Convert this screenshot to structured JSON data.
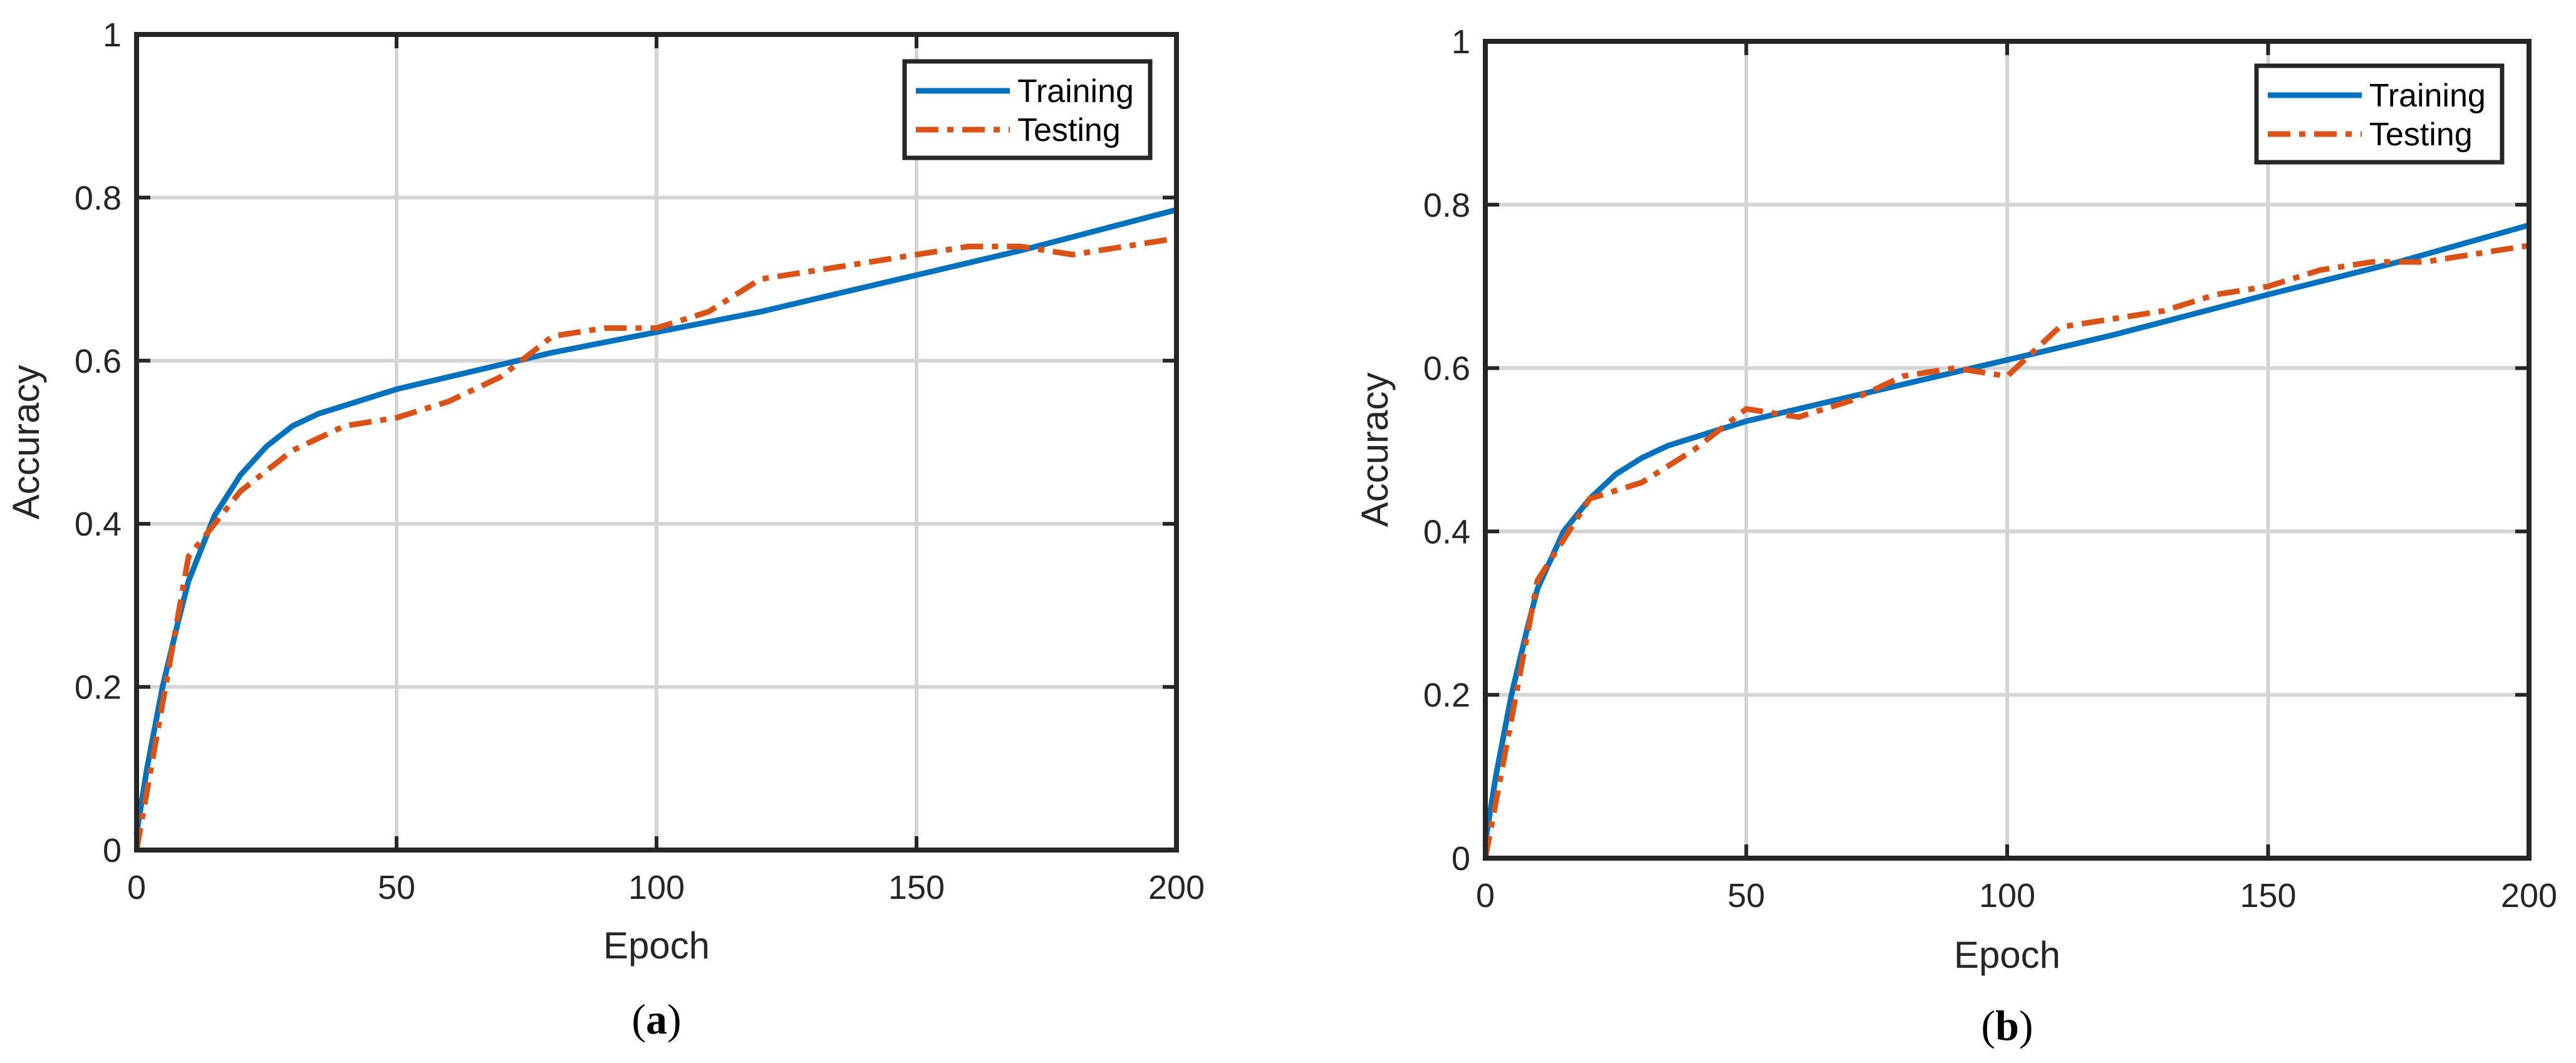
{
  "chart_data": [
    {
      "type": "line",
      "panel_label": "a",
      "title": "",
      "xlabel": "Epoch",
      "ylabel": "Accuracy",
      "xlim": [
        0,
        200
      ],
      "ylim": [
        0,
        1
      ],
      "xticks": [
        0,
        50,
        100,
        150,
        200
      ],
      "yticks": [
        0,
        0.2,
        0.4,
        0.6,
        0.8,
        1
      ],
      "xtick_labels": [
        "0",
        "50",
        "100",
        "150",
        "200"
      ],
      "ytick_labels": [
        "0",
        "0.2",
        "0.4",
        "0.6",
        "0.8",
        "1"
      ],
      "grid": true,
      "legend_position": "top-right",
      "series": [
        {
          "name": "Training",
          "color": "#0072BD",
          "line_style": "solid",
          "x": [
            0,
            2,
            5,
            8,
            10,
            15,
            20,
            25,
            30,
            35,
            40,
            50,
            60,
            70,
            80,
            100,
            120,
            150,
            170,
            200
          ],
          "y": [
            0.02,
            0.1,
            0.2,
            0.28,
            0.33,
            0.41,
            0.46,
            0.495,
            0.52,
            0.535,
            0.545,
            0.565,
            0.58,
            0.595,
            0.61,
            0.635,
            0.66,
            0.705,
            0.735,
            0.785
          ]
        },
        {
          "name": "Testing",
          "color": "#D95319",
          "line_style": "dashdot",
          "x": [
            0,
            10,
            20,
            30,
            40,
            50,
            60,
            70,
            80,
            90,
            100,
            110,
            120,
            130,
            140,
            150,
            160,
            170,
            180,
            190,
            200
          ],
          "y": [
            0.0,
            0.36,
            0.44,
            0.49,
            0.52,
            0.53,
            0.55,
            0.58,
            0.63,
            0.64,
            0.64,
            0.66,
            0.7,
            0.71,
            0.72,
            0.73,
            0.74,
            0.74,
            0.73,
            0.74,
            0.75
          ]
        }
      ]
    },
    {
      "type": "line",
      "panel_label": "b",
      "title": "",
      "xlabel": "Epoch",
      "ylabel": "Accuracy",
      "xlim": [
        0,
        200
      ],
      "ylim": [
        0,
        1
      ],
      "xticks": [
        0,
        50,
        100,
        150,
        200
      ],
      "yticks": [
        0,
        0.2,
        0.4,
        0.6,
        0.8,
        1
      ],
      "xtick_labels": [
        "0",
        "50",
        "100",
        "150",
        "200"
      ],
      "ytick_labels": [
        "0",
        "0.2",
        "0.4",
        "0.6",
        "0.8",
        "1"
      ],
      "grid": true,
      "legend_position": "top-right",
      "series": [
        {
          "name": "Training",
          "color": "#0072BD",
          "line_style": "solid",
          "x": [
            0,
            2,
            5,
            8,
            10,
            15,
            20,
            25,
            30,
            35,
            40,
            50,
            60,
            70,
            80,
            100,
            120,
            150,
            175,
            200
          ],
          "y": [
            0.02,
            0.1,
            0.2,
            0.28,
            0.33,
            0.4,
            0.44,
            0.47,
            0.49,
            0.505,
            0.515,
            0.535,
            0.55,
            0.565,
            0.58,
            0.61,
            0.64,
            0.69,
            0.73,
            0.775
          ]
        },
        {
          "name": "Testing",
          "color": "#D95319",
          "line_style": "dashdot",
          "x": [
            0,
            10,
            20,
            30,
            40,
            50,
            60,
            70,
            80,
            90,
            100,
            110,
            120,
            130,
            140,
            150,
            160,
            170,
            180,
            190,
            200
          ],
          "y": [
            0.0,
            0.34,
            0.44,
            0.46,
            0.5,
            0.55,
            0.54,
            0.56,
            0.59,
            0.6,
            0.59,
            0.65,
            0.66,
            0.67,
            0.69,
            0.7,
            0.72,
            0.73,
            0.73,
            0.74,
            0.75
          ]
        }
      ]
    }
  ]
}
